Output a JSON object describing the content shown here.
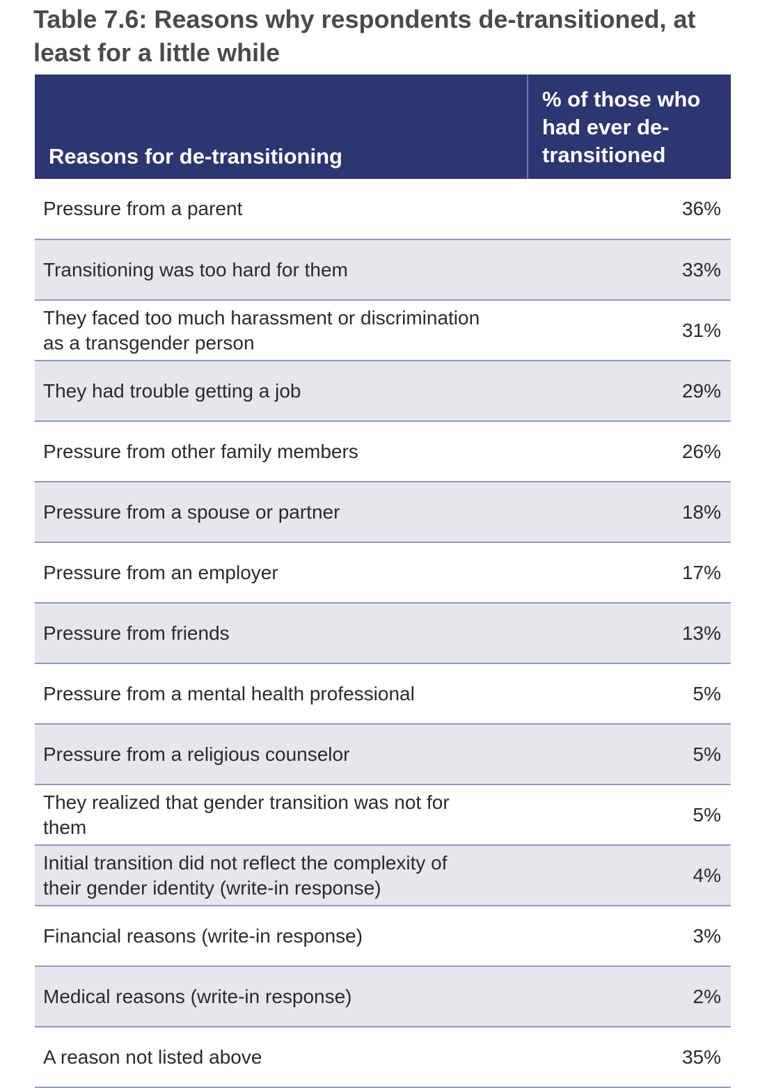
{
  "title": "Table 7.6: Reasons why respondents de-transitioned, at least for a little while",
  "table": {
    "headers": {
      "reason": "Reasons for de-transitioning",
      "percent": "% of those who had ever de-transitioned"
    },
    "rows": [
      {
        "reason": "Pressure from a parent",
        "percent": "36%"
      },
      {
        "reason": "Transitioning was too hard for them",
        "percent": "33%"
      },
      {
        "reason": "They faced too much harassment or discrimination as a transgender person",
        "percent": "31%"
      },
      {
        "reason": "They had trouble getting a job",
        "percent": "29%"
      },
      {
        "reason": "Pressure from other family members",
        "percent": "26%"
      },
      {
        "reason": "Pressure from a spouse or partner",
        "percent": "18%"
      },
      {
        "reason": "Pressure from an employer",
        "percent": "17%"
      },
      {
        "reason": "Pressure from friends",
        "percent": "13%"
      },
      {
        "reason": "Pressure from a mental health professional",
        "percent": "5%"
      },
      {
        "reason": "Pressure from a religious counselor",
        "percent": "5%"
      },
      {
        "reason": "They realized that gender transition was not for them",
        "percent": "5%"
      },
      {
        "reason": "Initial transition did not reflect the complexity of their gender identity (write-in response)",
        "percent": "4%"
      },
      {
        "reason": "Financial reasons (write-in response)",
        "percent": "3%"
      },
      {
        "reason": "Medical reasons (write-in response)",
        "percent": "2%"
      },
      {
        "reason": "A reason not listed above",
        "percent": "35%"
      }
    ]
  }
}
